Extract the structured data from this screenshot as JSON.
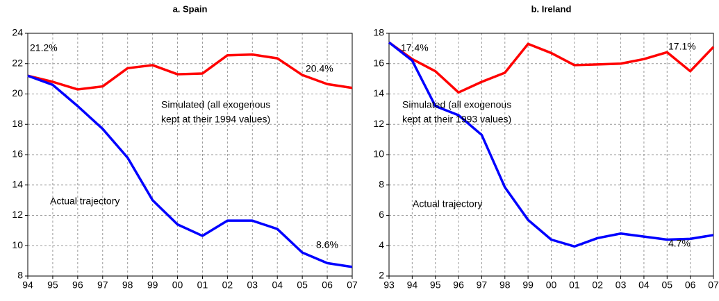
{
  "chart_data": [
    {
      "type": "line",
      "title": "a. Spain",
      "categories": [
        "94",
        "95",
        "96",
        "97",
        "98",
        "99",
        "00",
        "01",
        "02",
        "03",
        "04",
        "05",
        "06",
        "07"
      ],
      "series": [
        {
          "color": "#ff0000",
          "values": [
            21.2,
            20.8,
            20.3,
            20.5,
            21.7,
            21.9,
            21.3,
            21.35,
            22.55,
            22.6,
            22.35,
            21.25,
            20.65,
            20.4
          ]
        },
        {
          "color": "#0000ff",
          "values": [
            21.2,
            20.6,
            19.2,
            17.7,
            15.8,
            13.0,
            11.4,
            10.65,
            11.65,
            11.65,
            11.1,
            9.55,
            8.85,
            8.6
          ]
        }
      ],
      "ylim": [
        8,
        24
      ],
      "yticks": [
        8,
        10,
        12,
        14,
        16,
        18,
        20,
        22,
        24
      ],
      "grid": true,
      "annotations": [
        "21.2%",
        "20.4%",
        "8.6%",
        "Simulated (all exogenous",
        "kept at their 1994 values)",
        "Actual trajectory"
      ]
    },
    {
      "type": "line",
      "title": "b. Ireland",
      "categories": [
        "93",
        "94",
        "95",
        "96",
        "97",
        "98",
        "99",
        "00",
        "01",
        "02",
        "03",
        "04",
        "05",
        "06",
        "07"
      ],
      "series": [
        {
          "color": "#ff0000",
          "values": [
            17.4,
            16.3,
            15.5,
            14.1,
            14.8,
            15.4,
            17.3,
            16.7,
            15.9,
            15.95,
            16.0,
            16.3,
            16.75,
            15.5,
            17.1
          ]
        },
        {
          "color": "#0000ff",
          "values": [
            17.4,
            16.2,
            13.2,
            12.6,
            11.3,
            7.85,
            5.7,
            4.4,
            3.95,
            4.5,
            4.8,
            4.6,
            4.4,
            4.45,
            4.7
          ]
        }
      ],
      "ylim": [
        2,
        18
      ],
      "yticks": [
        2,
        4,
        6,
        8,
        10,
        12,
        14,
        16,
        18
      ],
      "grid": true,
      "annotations": [
        "17.4%",
        "17.1%",
        "4.7%",
        "Simulated (all exogenous",
        "kept at their 1993 values)",
        "Actual trajectory"
      ]
    }
  ]
}
